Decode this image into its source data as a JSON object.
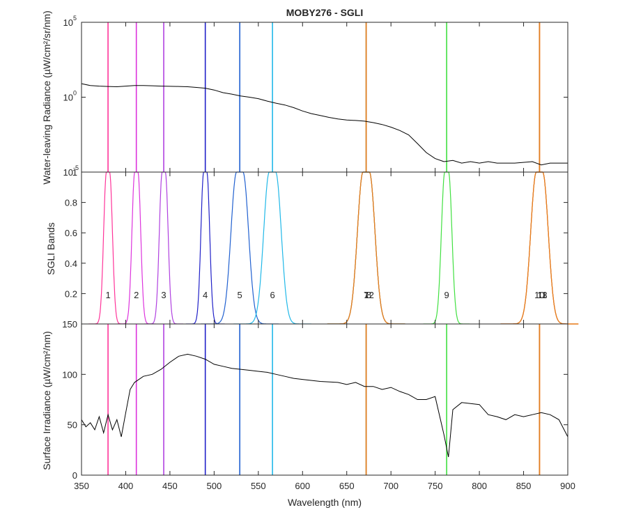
{
  "chart_data": {
    "type": "line",
    "title": "MOBY276 - SGLI",
    "xlabel": "Wavelength (nm)",
    "xlim": [
      350,
      900
    ],
    "xticks": [
      350,
      400,
      450,
      500,
      550,
      600,
      650,
      700,
      750,
      800,
      850,
      900
    ],
    "bands": [
      {
        "label": "1",
        "center": 380,
        "fwhm": 10,
        "color": "#ff3399"
      },
      {
        "label": "2",
        "center": 412,
        "fwhm": 10,
        "color": "#dd33dd"
      },
      {
        "label": "3",
        "center": 443,
        "fwhm": 10,
        "color": "#b040e0"
      },
      {
        "label": "4",
        "center": 490,
        "fwhm": 10,
        "color": "#2020c8"
      },
      {
        "label": "5",
        "center": 529,
        "fwhm": 20,
        "color": "#2060d0"
      },
      {
        "label": "6",
        "center": 566,
        "fwhm": 20,
        "color": "#20b8e8"
      },
      {
        "label": "7",
        "center": 672,
        "fwhm": 20,
        "color": "#20d020"
      },
      {
        "label": "8",
        "center": 672,
        "fwhm": 20,
        "color": "#ff4040"
      },
      {
        "label": "9",
        "center": 763,
        "fwhm": 12,
        "color": "#40e040"
      },
      {
        "label": "10",
        "center": 868,
        "fwhm": 20,
        "color": "#ffd700"
      },
      {
        "label": "11",
        "center": 868,
        "fwhm": 20,
        "color": "#ff3030"
      },
      {
        "label": "12",
        "center": 672,
        "fwhm": 20,
        "color": "#e08020"
      },
      {
        "label": "13",
        "center": 868,
        "fwhm": 20,
        "color": "#e08020"
      }
    ],
    "panels": [
      {
        "ylabel": "Water-leaving Radiance (µW/cm²/sr/nm)",
        "yscale": "log",
        "ylim": [
          1e-05,
          100000.0
        ],
        "yticks": [
          {
            "value": 100000,
            "mantissa": "10",
            "exp": "5"
          },
          {
            "value": 1,
            "mantissa": "10",
            "exp": "0"
          },
          {
            "value": 1e-05,
            "mantissa": "10",
            "exp": "-5"
          }
        ],
        "series": [
          {
            "x": [
              350,
              360,
              370,
              380,
              390,
              400,
              410,
              420,
              430,
              440,
              450,
              460,
              470,
              480,
              490,
              500,
              510,
              520,
              530,
              540,
              550,
              560,
              570,
              580,
              590,
              600,
              610,
              620,
              630,
              640,
              650,
              660,
              670,
              680,
              690,
              700,
              710,
              720,
              730,
              740,
              750,
              760,
              770,
              780,
              790,
              800,
              810,
              820,
              840,
              860,
              870,
              880,
              890,
              900
            ],
            "y": [
              8,
              6,
              5.5,
              5.2,
              5,
              5.5,
              6,
              6,
              5.8,
              5.5,
              5.3,
              5.2,
              5,
              4.5,
              4,
              3,
              2,
              1.6,
              1.2,
              1,
              0.8,
              0.55,
              0.4,
              0.3,
              0.2,
              0.12,
              0.08,
              0.06,
              0.045,
              0.035,
              0.03,
              0.028,
              0.025,
              0.02,
              0.015,
              0.01,
              0.006,
              0.003,
              0.0008,
              0.0002,
              8e-05,
              5e-05,
              6e-05,
              4e-05,
              5e-05,
              4e-05,
              5e-05,
              4e-05,
              4e-05,
              5e-05,
              3e-05,
              4e-05,
              4e-05,
              4e-05
            ]
          }
        ]
      },
      {
        "ylabel": "SGLI Bands",
        "yscale": "linear",
        "ylim": [
          0,
          1
        ],
        "yticks": [
          0.2,
          0.4,
          0.6,
          0.8,
          1
        ]
      },
      {
        "ylabel": "Surface Irradiance (µW/cm²/nm)",
        "yscale": "linear",
        "ylim": [
          0,
          150
        ],
        "yticks": [
          0,
          50,
          100,
          150
        ],
        "series": [
          {
            "x": [
              350,
              355,
              360,
              365,
              370,
              375,
              380,
              385,
              390,
              395,
              400,
              405,
              410,
              420,
              430,
              440,
              450,
              460,
              470,
              480,
              490,
              500,
              510,
              520,
              530,
              540,
              550,
              560,
              570,
              580,
              590,
              600,
              620,
              640,
              650,
              660,
              670,
              680,
              690,
              700,
              710,
              720,
              730,
              740,
              750,
              760,
              765,
              770,
              780,
              800,
              810,
              820,
              830,
              840,
              850,
              860,
              870,
              880,
              890,
              900
            ],
            "y": [
              55,
              48,
              52,
              45,
              58,
              42,
              60,
              45,
              55,
              38,
              62,
              85,
              92,
              98,
              100,
              105,
              112,
              118,
              120,
              118,
              115,
              110,
              108,
              106,
              105,
              104,
              103,
              102,
              100,
              98,
              96,
              95,
              93,
              92,
              90,
              92,
              88,
              88,
              85,
              87,
              83,
              80,
              75,
              75,
              78,
              40,
              18,
              65,
              72,
              70,
              60,
              58,
              55,
              60,
              58,
              60,
              62,
              60,
              55,
              38
            ]
          }
        ]
      }
    ]
  }
}
